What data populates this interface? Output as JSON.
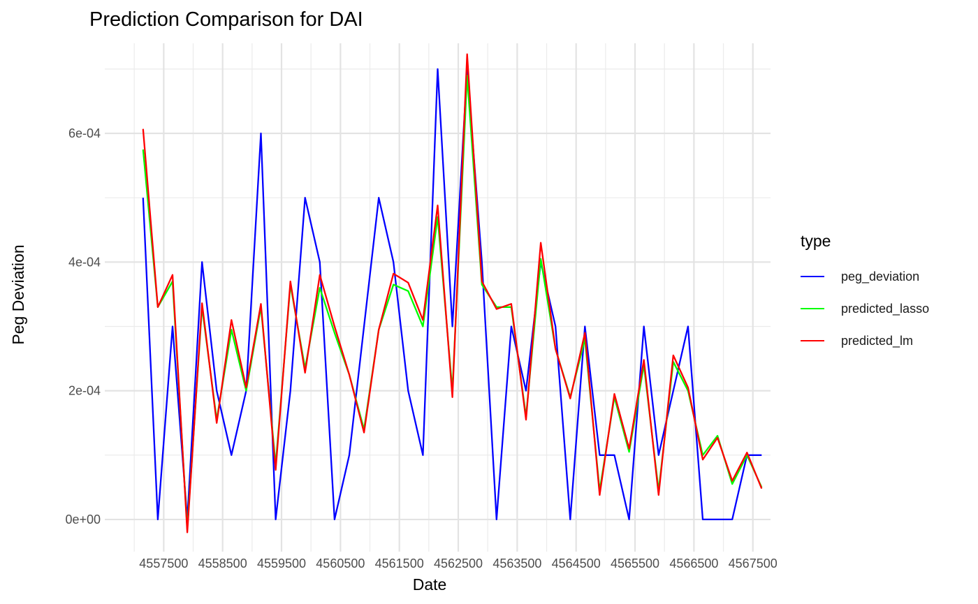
{
  "chart_data": {
    "type": "line",
    "title": "Prediction Comparison for DAI",
    "xlabel": "Date",
    "ylabel": "Peg Deviation",
    "xlim": [
      4556500,
      4567800
    ],
    "ylim": [
      -5e-05,
      0.00074
    ],
    "x_ticks": [
      4557500,
      4558500,
      4559500,
      4560500,
      4561500,
      4562500,
      4563500,
      4564500,
      4565500,
      4566500,
      4567500
    ],
    "x_tick_labels": [
      "4557500",
      "4558500",
      "4559500",
      "4560500",
      "4561500",
      "4562500",
      "4563500",
      "4564500",
      "4565500",
      "4566500",
      "4567500"
    ],
    "y_ticks": [
      0,
      0.0002,
      0.0004,
      0.0006
    ],
    "y_tick_labels": [
      "0e+00",
      "2e-04",
      "4e-04",
      "6e-04"
    ],
    "grid": true,
    "legend": {
      "title": "type",
      "position": "right"
    },
    "x": [
      4557150,
      4557400,
      4557650,
      4557900,
      4558150,
      4558400,
      4558650,
      4558900,
      4559150,
      4559400,
      4559650,
      4559900,
      4560150,
      4560400,
      4560650,
      4560900,
      4561150,
      4561400,
      4561650,
      4561900,
      4562150,
      4562400,
      4562650,
      4562900,
      4563150,
      4563400,
      4563650,
      4563900,
      4564150,
      4564400,
      4564650,
      4564900,
      4565150,
      4565400,
      4565650,
      4565900,
      4566150,
      4566400,
      4566650,
      4566900,
      4567150,
      4567400,
      4567650
    ],
    "series": [
      {
        "name": "peg_deviation",
        "color": "#0000ff",
        "values": [
          0.0005,
          0.0,
          0.0003,
          0.0,
          0.0004,
          0.0002,
          0.0001,
          0.0002,
          0.0006,
          0.0,
          0.0002,
          0.0005,
          0.0004,
          0.0,
          0.0001,
          0.0003,
          0.0005,
          0.0004,
          0.0002,
          0.0001,
          0.0007,
          0.0003,
          0.0007,
          0.0004,
          0.0,
          0.0003,
          0.0002,
          0.0004,
          0.0003,
          0.0,
          0.0003,
          0.0001,
          0.0001,
          0.0,
          0.0003,
          0.0001,
          0.0002,
          0.0003,
          0.0,
          0.0,
          0.0,
          0.0001,
          0.0001
        ]
      },
      {
        "name": "predicted_lasso",
        "color": "#00ff00",
        "values": [
          0.000575,
          0.00033,
          0.00037,
          -1.5e-05,
          0.00033,
          0.000155,
          0.000295,
          0.0002,
          0.00033,
          8.5e-05,
          0.000365,
          0.000235,
          0.00036,
          0.00029,
          0.000225,
          0.00014,
          0.000295,
          0.000365,
          0.000355,
          0.0003,
          0.00047,
          0.0002,
          0.00069,
          0.000365,
          0.00033,
          0.00033,
          0.00016,
          0.000405,
          0.000265,
          0.00019,
          0.00028,
          4.5e-05,
          0.00019,
          0.000105,
          0.00024,
          4.5e-05,
          0.000245,
          0.0002,
          0.0001,
          0.00013,
          5.5e-05,
          0.0001,
          5e-05
        ]
      },
      {
        "name": "predicted_lm",
        "color": "#ff0000",
        "values": [
          0.000607,
          0.00033,
          0.00038,
          -2e-05,
          0.000336,
          0.00015,
          0.00031,
          0.000205,
          0.000335,
          7.7e-05,
          0.00037,
          0.000228,
          0.00038,
          0.0003,
          0.000225,
          0.000135,
          0.000295,
          0.000382,
          0.000368,
          0.00031,
          0.000488,
          0.00019,
          0.000723,
          0.00037,
          0.000327,
          0.000335,
          0.000155,
          0.00043,
          0.000265,
          0.000188,
          0.00029,
          3.8e-05,
          0.000195,
          0.00011,
          0.000248,
          3.8e-05,
          0.000255,
          0.000205,
          9.3e-05,
          0.000127,
          6e-05,
          0.000104,
          4.8e-05
        ]
      }
    ]
  }
}
